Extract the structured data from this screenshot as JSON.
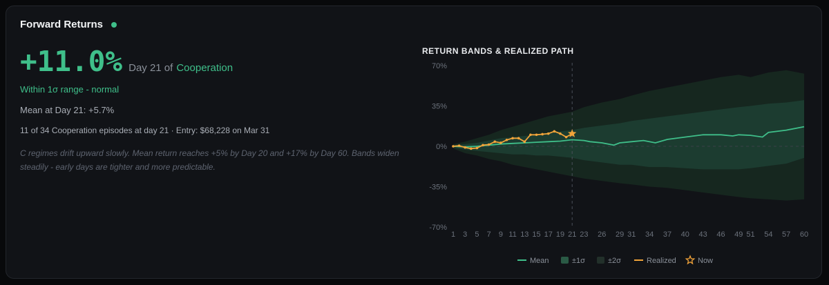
{
  "panel": {
    "title": "Forward Returns",
    "big_return": "+11.0%",
    "day_text": "Day 21 of",
    "regime": "Cooperation",
    "range_status": "Within 1σ range - normal",
    "mean_text": "Mean at Day 21: +5.7%",
    "episodes_text": "11 of 34 Cooperation episodes at day 21 · Entry: $68,228 on Mar 31",
    "note": "C regimes drift upward slowly. Mean return reaches +5% by Day 20 and +17% by Day 60. Bands widen steadily - early days are tighter and more predictable."
  },
  "colors": {
    "accent": "#3fbf8a",
    "realized": "#f2a43a",
    "band1": "#1c3d31",
    "band2": "#172820"
  },
  "chart_data": {
    "type": "line",
    "title": "RETURN BANDS & REALIZED PATH",
    "xlim": [
      1,
      60
    ],
    "ylim": [
      -70,
      70
    ],
    "y_ticks": [
      70,
      35,
      0,
      -35,
      -70
    ],
    "y_tick_labels": [
      "70%",
      "35%",
      "0%",
      "-35%",
      "-70%"
    ],
    "x_ticks": [
      1,
      3,
      5,
      7,
      9,
      11,
      13,
      15,
      17,
      19,
      21,
      23,
      26,
      29,
      31,
      34,
      37,
      40,
      43,
      46,
      49,
      51,
      54,
      57,
      60
    ],
    "current_day": 21,
    "legend": [
      "Mean",
      "±1σ",
      "±2σ",
      "Realized",
      "Now"
    ],
    "mean": [
      [
        1,
        0
      ],
      [
        3,
        -0.5
      ],
      [
        5,
        0
      ],
      [
        7,
        1
      ],
      [
        9,
        2
      ],
      [
        11,
        2.5
      ],
      [
        13,
        3
      ],
      [
        15,
        3.5
      ],
      [
        17,
        4
      ],
      [
        19,
        4.5
      ],
      [
        21,
        5.7
      ],
      [
        23,
        5
      ],
      [
        24,
        4
      ],
      [
        26,
        3
      ],
      [
        28,
        1
      ],
      [
        29,
        3
      ],
      [
        31,
        4
      ],
      [
        33,
        5
      ],
      [
        35,
        3
      ],
      [
        37,
        6
      ],
      [
        40,
        8
      ],
      [
        43,
        10
      ],
      [
        46,
        10
      ],
      [
        48,
        9
      ],
      [
        49,
        10
      ],
      [
        51,
        9.5
      ],
      [
        53,
        8
      ],
      [
        54,
        12
      ],
      [
        57,
        14
      ],
      [
        60,
        17
      ]
    ],
    "band_1sigma": [
      [
        1,
        -1,
        1
      ],
      [
        3,
        -3,
        2
      ],
      [
        5,
        -4,
        3
      ],
      [
        7,
        -5,
        5
      ],
      [
        9,
        -6,
        7
      ],
      [
        11,
        -7,
        8
      ],
      [
        13,
        -7,
        9
      ],
      [
        15,
        -8,
        10
      ],
      [
        17,
        -8,
        12
      ],
      [
        19,
        -9,
        13
      ],
      [
        21,
        -10,
        14
      ],
      [
        23,
        -12,
        16
      ],
      [
        26,
        -14,
        18
      ],
      [
        29,
        -16,
        20
      ],
      [
        31,
        -16,
        22
      ],
      [
        34,
        -18,
        24
      ],
      [
        37,
        -18,
        26
      ],
      [
        40,
        -19,
        28
      ],
      [
        43,
        -20,
        30
      ],
      [
        46,
        -20,
        32
      ],
      [
        49,
        -20,
        34
      ],
      [
        51,
        -19,
        35
      ],
      [
        54,
        -17,
        37
      ],
      [
        57,
        -15,
        38
      ],
      [
        60,
        -10,
        40
      ]
    ],
    "band_2sigma": [
      [
        1,
        -2,
        2
      ],
      [
        3,
        -6,
        4
      ],
      [
        5,
        -8,
        7
      ],
      [
        7,
        -11,
        10
      ],
      [
        9,
        -13,
        14
      ],
      [
        11,
        -16,
        17
      ],
      [
        13,
        -18,
        20
      ],
      [
        15,
        -20,
        23
      ],
      [
        17,
        -22,
        26
      ],
      [
        19,
        -24,
        28
      ],
      [
        21,
        -26,
        30
      ],
      [
        23,
        -28,
        34
      ],
      [
        26,
        -30,
        38
      ],
      [
        29,
        -32,
        41
      ],
      [
        31,
        -33,
        44
      ],
      [
        34,
        -35,
        48
      ],
      [
        37,
        -36,
        51
      ],
      [
        40,
        -38,
        54
      ],
      [
        43,
        -40,
        57
      ],
      [
        46,
        -42,
        60
      ],
      [
        49,
        -44,
        62
      ],
      [
        51,
        -45,
        60
      ],
      [
        54,
        -46,
        64
      ],
      [
        57,
        -47,
        66
      ],
      [
        60,
        -46,
        63
      ]
    ],
    "realized": [
      [
        1,
        0
      ],
      [
        2,
        0.5
      ],
      [
        3,
        -1
      ],
      [
        4,
        -2
      ],
      [
        5,
        -1.5
      ],
      [
        6,
        1
      ],
      [
        7,
        1.5
      ],
      [
        8,
        4
      ],
      [
        9,
        3
      ],
      [
        10,
        5.5
      ],
      [
        11,
        7
      ],
      [
        12,
        7
      ],
      [
        13,
        4
      ],
      [
        14,
        10
      ],
      [
        15,
        10
      ],
      [
        16,
        10.5
      ],
      [
        17,
        11
      ],
      [
        18,
        13
      ],
      [
        19,
        11
      ],
      [
        20,
        8
      ],
      [
        21,
        11
      ]
    ],
    "now_point": [
      21,
      11
    ]
  }
}
